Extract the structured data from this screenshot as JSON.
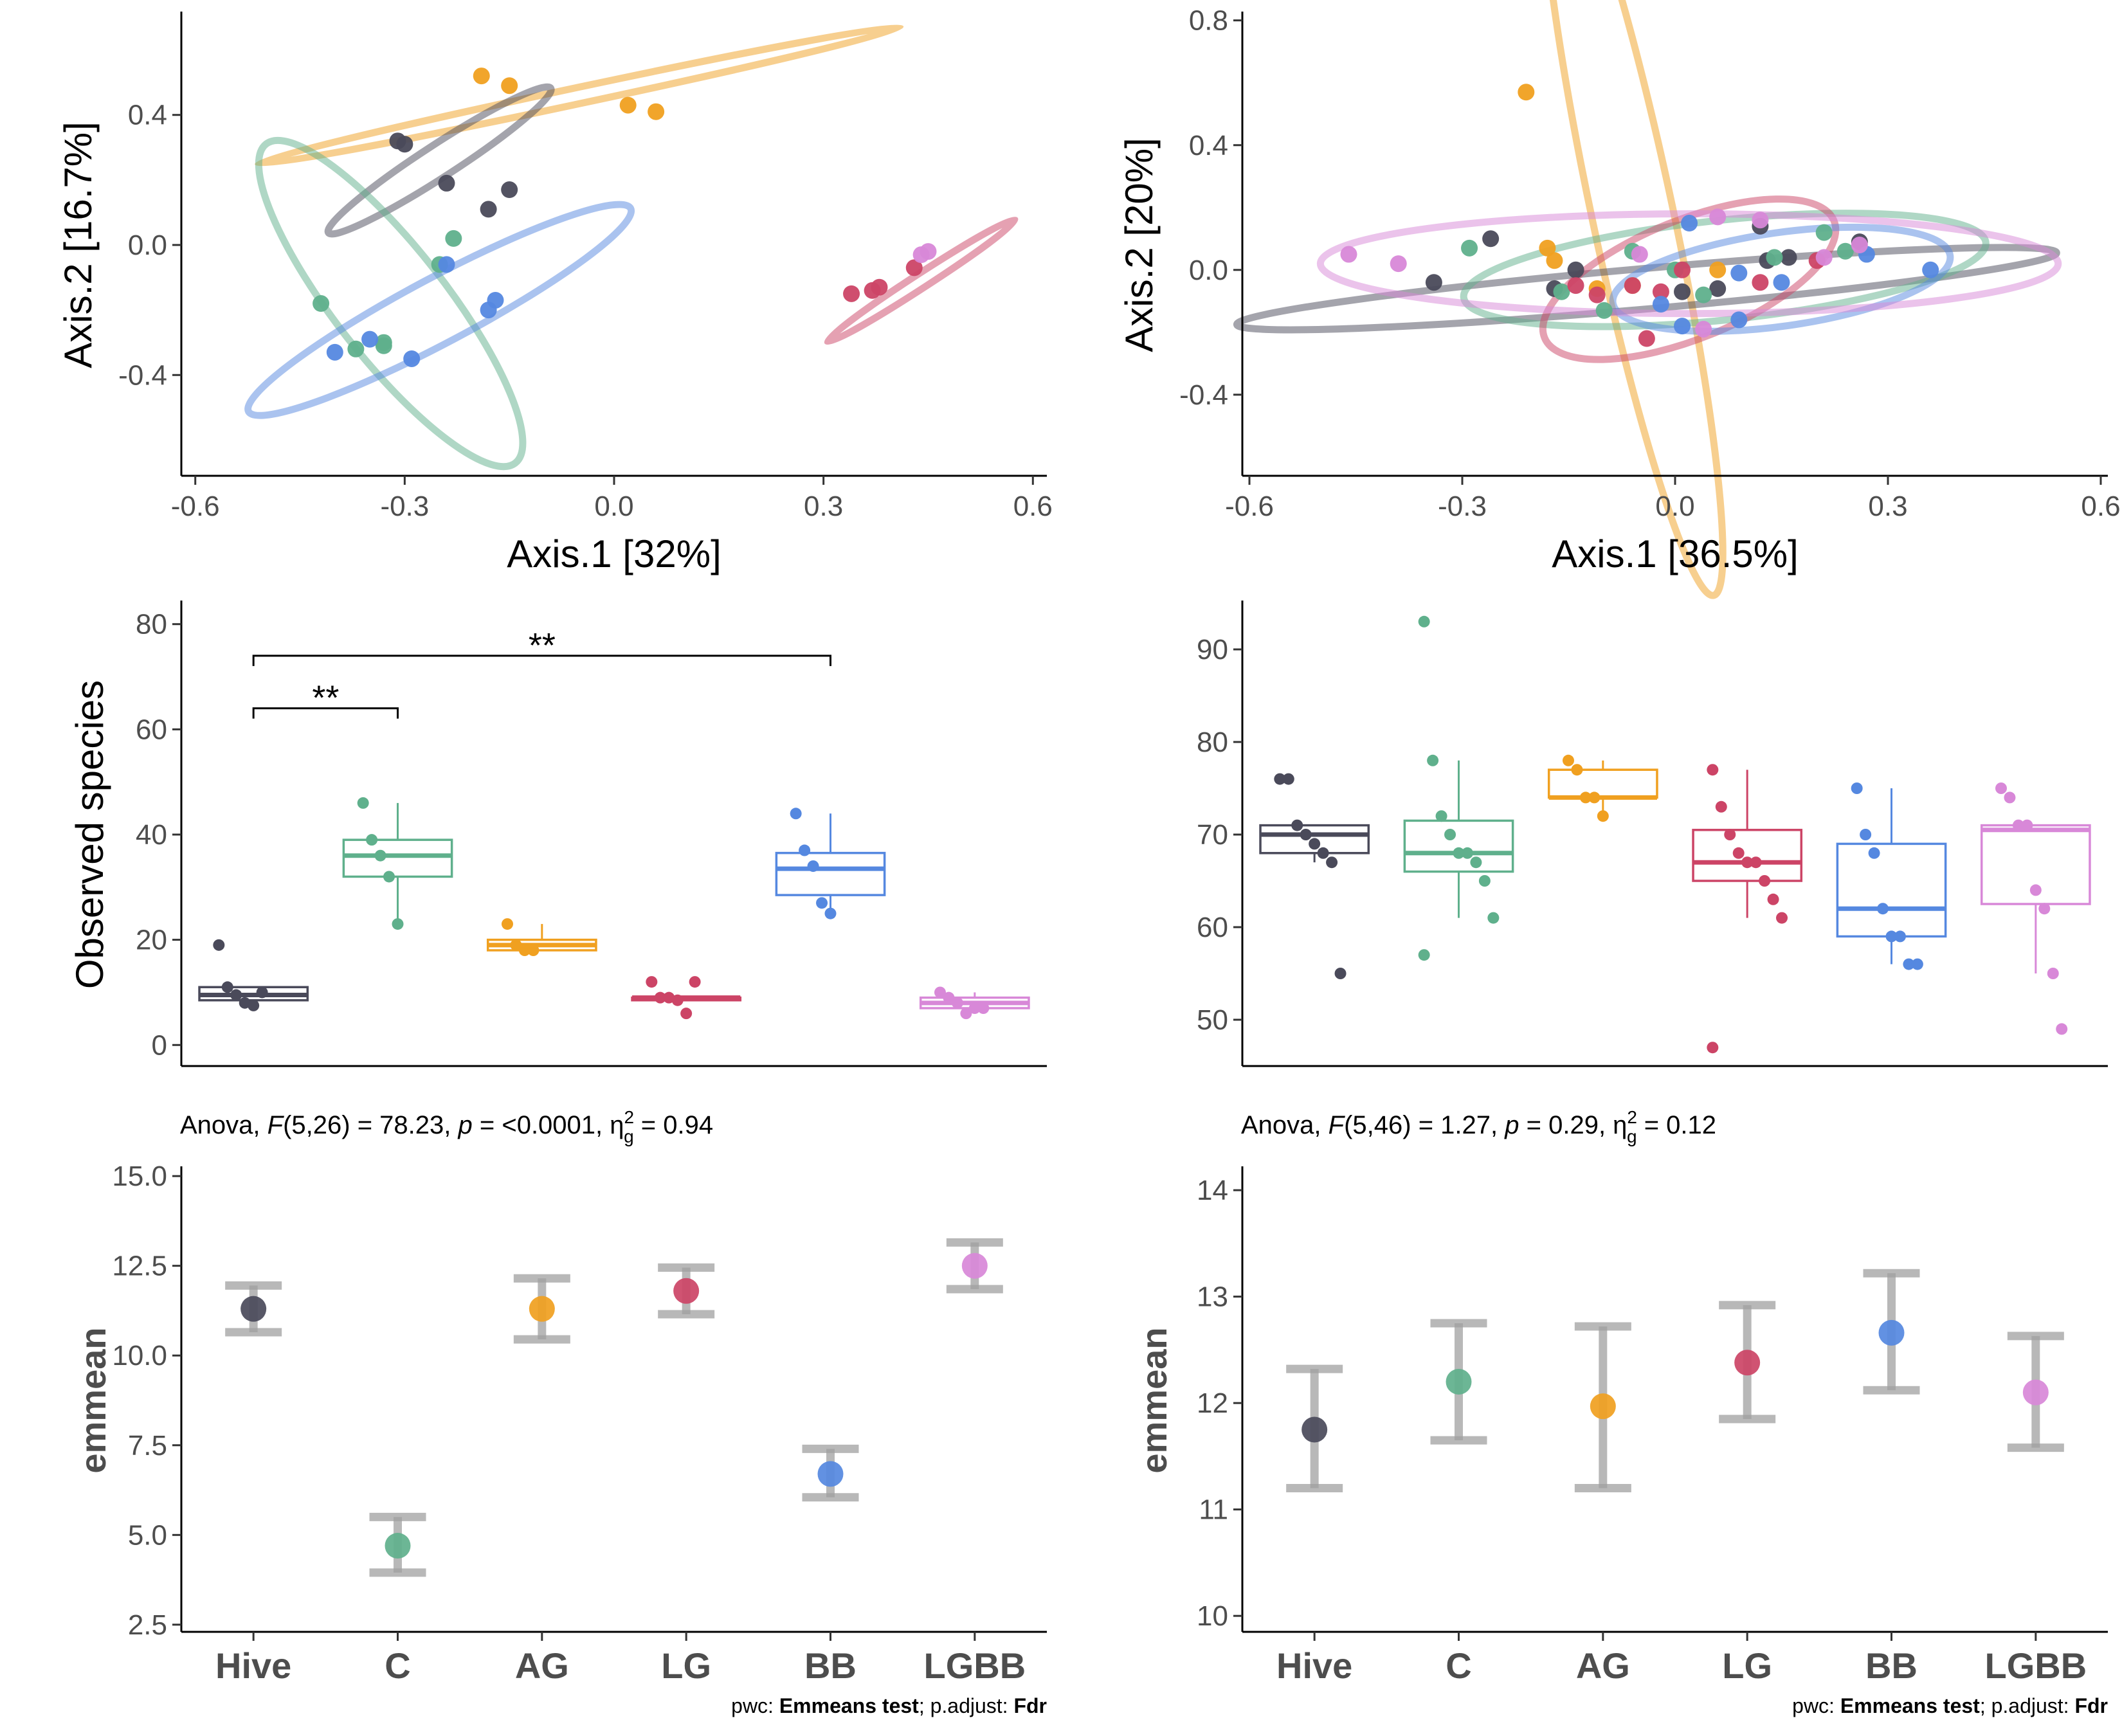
{
  "colors": {
    "Hive": "#4a4a5a",
    "C": "#5fb08c",
    "AG": "#f0a020",
    "LG": "#cc4466",
    "BB": "#5588e0",
    "LGBB": "#d888d8",
    "gray": "#a0a0a0"
  },
  "chart_data": [
    {
      "type": "scatter",
      "xlabel": "Axis.1   [32%]",
      "ylabel": "Axis.2   [16.7%]",
      "xlim": [
        -0.62,
        0.62
      ],
      "ylim": [
        -0.71,
        0.71
      ],
      "xticks": [
        -0.6,
        -0.3,
        0.0,
        0.3,
        0.6
      ],
      "xtick_labels": [
        "-0.6",
        "-0.3",
        "0.0",
        "0.3",
        "0.6"
      ],
      "yticks": [
        -0.4,
        0.0,
        0.4
      ],
      "ytick_labels": [
        "-0.4",
        "0.0",
        "0.4"
      ],
      "series": [
        {
          "group": "AG",
          "points": [
            [
              -0.19,
              0.52
            ],
            [
              -0.15,
              0.49
            ],
            [
              0.02,
              0.43
            ],
            [
              0.06,
              0.41
            ]
          ],
          "ellipse": {
            "cx": -0.05,
            "cy": 0.46,
            "rx": 0.47,
            "ry": 0.025,
            "angle": 12
          }
        },
        {
          "group": "Hive",
          "points": [
            [
              -0.31,
              0.32
            ],
            [
              -0.3,
              0.31
            ],
            [
              -0.24,
              0.19
            ],
            [
              -0.18,
              0.11
            ],
            [
              -0.15,
              0.17
            ]
          ],
          "ellipse": {
            "cx": -0.25,
            "cy": 0.26,
            "rx": 0.19,
            "ry": 0.05,
            "angle": 33
          }
        },
        {
          "group": "C",
          "points": [
            [
              -0.42,
              -0.18
            ],
            [
              -0.37,
              -0.32
            ],
            [
              -0.33,
              -0.3
            ],
            [
              -0.33,
              -0.31
            ],
            [
              -0.23,
              0.02
            ],
            [
              -0.25,
              -0.06
            ]
          ],
          "ellipse": {
            "cx": -0.32,
            "cy": -0.18,
            "rx": 0.29,
            "ry": 0.17,
            "angle": -52
          }
        },
        {
          "group": "BB",
          "points": [
            [
              -0.4,
              -0.33
            ],
            [
              -0.35,
              -0.29
            ],
            [
              -0.29,
              -0.35
            ],
            [
              -0.24,
              -0.06
            ],
            [
              -0.17,
              -0.17
            ],
            [
              -0.18,
              -0.2
            ]
          ],
          "ellipse": {
            "cx": -0.25,
            "cy": -0.2,
            "rx": 0.31,
            "ry": 0.1,
            "angle": 28
          }
        },
        {
          "group": "LG",
          "points": [
            [
              0.34,
              -0.15
            ],
            [
              0.37,
              -0.14
            ],
            [
              0.38,
              -0.13
            ],
            [
              0.43,
              -0.07
            ]
          ],
          "ellipse": {
            "cx": 0.44,
            "cy": -0.11,
            "rx": 0.16,
            "ry": 0.022,
            "angle": 33
          }
        },
        {
          "group": "LGBB",
          "points": [
            [
              0.44,
              -0.03
            ],
            [
              0.45,
              -0.02
            ]
          ],
          "ellipse": null
        }
      ]
    },
    {
      "type": "scatter",
      "xlabel": "Axis.1   [36.5%]",
      "ylabel": "Axis.2   [20%]",
      "xlim": [
        -0.61,
        0.61
      ],
      "ylim": [
        -0.66,
        0.82
      ],
      "xticks": [
        -0.6,
        -0.3,
        0.0,
        0.3,
        0.6
      ],
      "xtick_labels": [
        "-0.6",
        "-0.3",
        "0.0",
        "0.3",
        "0.6"
      ],
      "yticks": [
        -0.4,
        0.0,
        0.4,
        0.8
      ],
      "ytick_labels": [
        "-0.4",
        "0.0",
        "0.4",
        "0.8"
      ],
      "series": [
        {
          "group": "AG",
          "points": [
            [
              -0.21,
              0.57
            ],
            [
              -0.18,
              0.07
            ],
            [
              -0.17,
              0.03
            ],
            [
              -0.11,
              -0.06
            ],
            [
              -0.06,
              -0.05
            ],
            [
              0.06,
              0.0
            ]
          ],
          "ellipse": {
            "cx": -0.06,
            "cy": 0.18,
            "rx": 0.55,
            "ry": 0.13,
            "angle": -78
          }
        },
        {
          "group": "Hive",
          "points": [
            [
              -0.34,
              -0.04
            ],
            [
              -0.26,
              0.1
            ],
            [
              -0.17,
              -0.06
            ],
            [
              -0.14,
              0.0
            ],
            [
              0.01,
              -0.07
            ],
            [
              0.06,
              -0.06
            ],
            [
              0.12,
              0.14
            ],
            [
              0.13,
              0.03
            ],
            [
              0.26,
              0.09
            ],
            [
              0.16,
              0.04
            ]
          ],
          "ellipse": {
            "cx": -0.04,
            "cy": -0.06,
            "rx": 0.58,
            "ry": 0.065,
            "angle": 5
          }
        },
        {
          "group": "C",
          "points": [
            [
              -0.29,
              0.07
            ],
            [
              -0.16,
              -0.07
            ],
            [
              -0.1,
              -0.13
            ],
            [
              -0.06,
              0.06
            ],
            [
              0.0,
              0.0
            ],
            [
              0.04,
              -0.08
            ],
            [
              0.14,
              0.04
            ],
            [
              0.21,
              0.12
            ],
            [
              0.24,
              0.06
            ]
          ],
          "ellipse": {
            "cx": 0.07,
            "cy": 0.0,
            "rx": 0.37,
            "ry": 0.16,
            "angle": 6
          }
        },
        {
          "group": "LG",
          "points": [
            [
              -0.14,
              -0.05
            ],
            [
              -0.11,
              -0.08
            ],
            [
              -0.06,
              -0.05
            ],
            [
              -0.04,
              -0.22
            ],
            [
              -0.02,
              -0.07
            ],
            [
              0.01,
              0.0
            ],
            [
              0.12,
              -0.04
            ],
            [
              0.2,
              0.03
            ]
          ],
          "ellipse": {
            "cx": 0.02,
            "cy": -0.03,
            "rx": 0.22,
            "ry": 0.19,
            "angle": 22
          }
        },
        {
          "group": "BB",
          "points": [
            [
              -0.02,
              -0.11
            ],
            [
              0.02,
              0.15
            ],
            [
              0.01,
              -0.18
            ],
            [
              0.09,
              -0.16
            ],
            [
              0.09,
              -0.01
            ],
            [
              0.15,
              -0.04
            ],
            [
              0.27,
              0.05
            ],
            [
              0.36,
              0.0
            ]
          ],
          "ellipse": {
            "cx": 0.15,
            "cy": -0.03,
            "rx": 0.24,
            "ry": 0.15,
            "angle": 8
          }
        },
        {
          "group": "LGBB",
          "points": [
            [
              -0.46,
              0.05
            ],
            [
              -0.39,
              0.02
            ],
            [
              -0.05,
              0.05
            ],
            [
              0.04,
              -0.19
            ],
            [
              0.06,
              0.17
            ],
            [
              0.12,
              0.16
            ],
            [
              0.21,
              0.04
            ],
            [
              0.26,
              0.08
            ]
          ],
          "ellipse": {
            "cx": 0.02,
            "cy": 0.02,
            "rx": 0.52,
            "ry": 0.16,
            "angle": 0
          }
        }
      ]
    },
    {
      "type": "box",
      "ylabel": "Observed species",
      "ylim": [
        -4,
        84
      ],
      "yticks": [
        0,
        20,
        40,
        60,
        80
      ],
      "ytick_labels": [
        "0",
        "20",
        "40",
        "60",
        "80"
      ],
      "categories": [
        "Hive",
        "C",
        "AG",
        "LG",
        "BB",
        "LGBB"
      ],
      "boxes": [
        {
          "group": "Hive",
          "q1": 8.5,
          "median": 9.5,
          "q3": 11,
          "whisker_low": 7,
          "whisker_high": 11,
          "points": [
            19,
            11,
            9.5,
            8,
            7.5,
            10
          ]
        },
        {
          "group": "C",
          "q1": 32,
          "median": 36,
          "q3": 39,
          "whisker_low": 23,
          "whisker_high": 46,
          "points": [
            46,
            39,
            36,
            32,
            23
          ]
        },
        {
          "group": "AG",
          "q1": 18,
          "median": 19,
          "q3": 20,
          "whisker_low": 18,
          "whisker_high": 23,
          "points": [
            23,
            19,
            18,
            18
          ]
        },
        {
          "group": "LG",
          "q1": 8.5,
          "median": 9,
          "q3": 9,
          "whisker_low": 8.5,
          "whisker_high": 9,
          "points": [
            12,
            9,
            9,
            8.5,
            6,
            12
          ]
        },
        {
          "group": "BB",
          "q1": 28.5,
          "median": 33.5,
          "q3": 36.5,
          "whisker_low": 25,
          "whisker_high": 44,
          "points": [
            44,
            37,
            34,
            27,
            25
          ]
        },
        {
          "group": "LGBB",
          "q1": 7,
          "median": 8,
          "q3": 9,
          "whisker_low": 6,
          "whisker_high": 10,
          "points": [
            10,
            9,
            8,
            6,
            7,
            7
          ]
        }
      ],
      "brackets": [
        {
          "from": "Hive",
          "to": "C",
          "y": 64,
          "label": "**"
        },
        {
          "from": "Hive",
          "to": "BB",
          "y": 74,
          "label": "**"
        }
      ],
      "subtitle": {
        "prefix": "Anova, ",
        "F": "F",
        "df": "(5,26) = 78.23, ",
        "p": "p",
        "p_val": " = <0.0001, ",
        "eta": "η",
        "eta_sup": "2",
        "eta_sub": "g",
        "eta_val": " = 0.94"
      }
    },
    {
      "type": "box",
      "ylabel": "",
      "ylim": [
        45,
        95
      ],
      "yticks": [
        50,
        60,
        70,
        80,
        90
      ],
      "ytick_labels": [
        "50",
        "60",
        "70",
        "80",
        "90"
      ],
      "categories": [
        "Hive",
        "C",
        "AG",
        "LG",
        "BB",
        "LGBB"
      ],
      "boxes": [
        {
          "group": "Hive",
          "q1": 68,
          "median": 70,
          "q3": 71,
          "whisker_low": 67,
          "whisker_high": 71,
          "points": [
            76,
            76,
            71,
            70,
            69,
            68,
            67,
            55
          ]
        },
        {
          "group": "C",
          "q1": 66,
          "median": 68,
          "q3": 71.5,
          "whisker_low": 61,
          "whisker_high": 78,
          "points": [
            93,
            78,
            72,
            70,
            68,
            68,
            67,
            65,
            61,
            57
          ]
        },
        {
          "group": "AG",
          "q1": 74,
          "median": 74,
          "q3": 77,
          "whisker_low": 72,
          "whisker_high": 78,
          "points": [
            78,
            77,
            74,
            74,
            72
          ]
        },
        {
          "group": "LG",
          "q1": 65,
          "median": 67,
          "q3": 70.5,
          "whisker_low": 61,
          "whisker_high": 77,
          "points": [
            77,
            73,
            70,
            68,
            67,
            67,
            65,
            63,
            61,
            47
          ]
        },
        {
          "group": "BB",
          "q1": 59,
          "median": 62,
          "q3": 69,
          "whisker_low": 56,
          "whisker_high": 75,
          "points": [
            75,
            70,
            68,
            62,
            59,
            59,
            56,
            56
          ]
        },
        {
          "group": "LGBB",
          "q1": 62.5,
          "median": 70.5,
          "q3": 71,
          "whisker_low": 55,
          "whisker_high": 71,
          "points": [
            75,
            74,
            71,
            71,
            64,
            62,
            55,
            49
          ]
        }
      ],
      "brackets": [],
      "subtitle": {
        "prefix": "Anova, ",
        "F": "F",
        "df": "(5,46) = 1.27, ",
        "p": "p",
        "p_val": " = 0.29, ",
        "eta": "η",
        "eta_sup": "2",
        "eta_sub": "g",
        "eta_val": " = 0.12"
      }
    },
    {
      "type": "errorbar",
      "ylabel": "emmean",
      "ylim": [
        2.3,
        15.2
      ],
      "yticks": [
        2.5,
        5.0,
        7.5,
        10.0,
        12.5,
        15.0
      ],
      "ytick_labels": [
        "2.5",
        "5.0",
        "7.5",
        "10.0",
        "12.5",
        "15.0"
      ],
      "categories": [
        "Hive",
        "C",
        "AG",
        "LG",
        "BB",
        "LGBB"
      ],
      "points": [
        {
          "group": "Hive",
          "emmean": 11.3,
          "lower": 10.65,
          "upper": 11.95
        },
        {
          "group": "C",
          "emmean": 4.7,
          "lower": 3.95,
          "upper": 5.5
        },
        {
          "group": "AG",
          "emmean": 11.3,
          "lower": 10.45,
          "upper": 12.15
        },
        {
          "group": "LG",
          "emmean": 11.8,
          "lower": 11.15,
          "upper": 12.45
        },
        {
          "group": "BB",
          "emmean": 6.7,
          "lower": 6.05,
          "upper": 7.4
        },
        {
          "group": "LGBB",
          "emmean": 12.5,
          "lower": 11.85,
          "upper": 13.15
        }
      ],
      "caption": {
        "a": "pwc: ",
        "b": "Emmeans test",
        "c": "; p.adjust: ",
        "d": "Fdr"
      }
    },
    {
      "type": "errorbar",
      "ylabel": "emmean",
      "ylim": [
        9.85,
        14.2
      ],
      "yticks": [
        10,
        11,
        12,
        13,
        14
      ],
      "ytick_labels": [
        "10",
        "11",
        "12",
        "13",
        "14"
      ],
      "categories": [
        "Hive",
        "C",
        "AG",
        "LG",
        "BB",
        "LGBB"
      ],
      "points": [
        {
          "group": "Hive",
          "emmean": 11.75,
          "lower": 11.2,
          "upper": 12.32
        },
        {
          "group": "C",
          "emmean": 12.2,
          "lower": 11.65,
          "upper": 12.75
        },
        {
          "group": "AG",
          "emmean": 11.97,
          "lower": 11.2,
          "upper": 12.72
        },
        {
          "group": "LG",
          "emmean": 12.38,
          "lower": 11.85,
          "upper": 12.92
        },
        {
          "group": "BB",
          "emmean": 12.66,
          "lower": 12.12,
          "upper": 13.22
        },
        {
          "group": "LGBB",
          "emmean": 12.1,
          "lower": 11.58,
          "upper": 12.63
        }
      ],
      "caption": {
        "a": "pwc: ",
        "b": "Emmeans test",
        "c": "; p.adjust: ",
        "d": "Fdr"
      }
    }
  ]
}
